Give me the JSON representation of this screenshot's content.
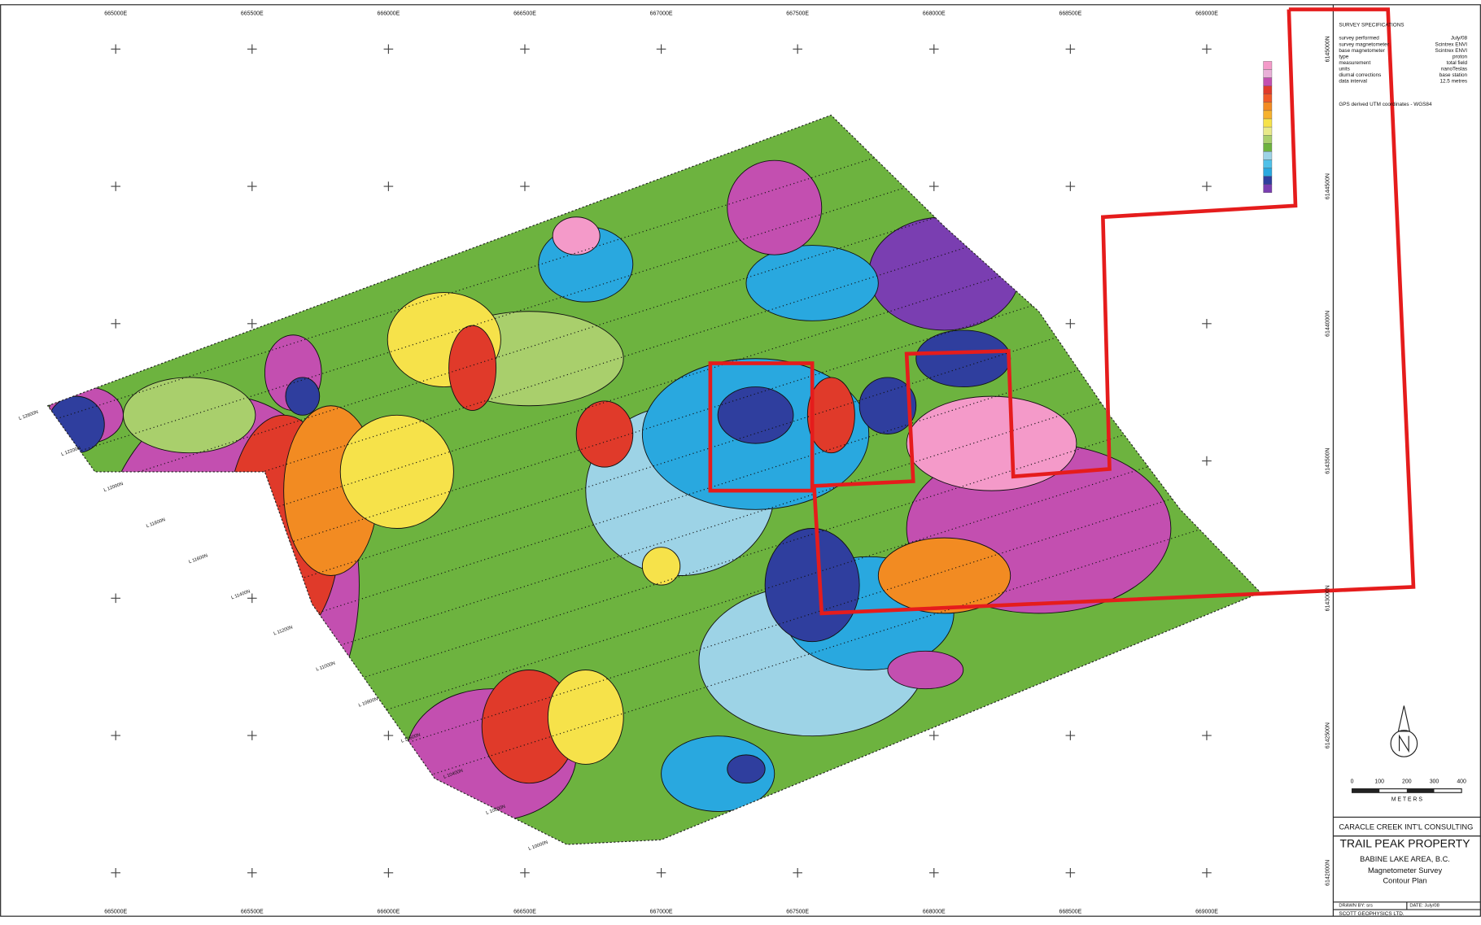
{
  "map": {
    "eastings": [
      "665000E",
      "665500E",
      "666000E",
      "666500E",
      "667000E",
      "667500E",
      "668000E",
      "668500E",
      "669000E"
    ],
    "northings": [
      "6145000N",
      "6144500N",
      "6144000N",
      "6143500N",
      "6143000N",
      "6142500N",
      "6142000N"
    ],
    "line_labels": [
      "L 12600N",
      "L 12200N",
      "L 12000N",
      "L 11800N",
      "L 11600N",
      "L 11400N",
      "L 11200N",
      "L 11000N",
      "L 10800N",
      "L 10600N",
      "L 10400N",
      "L 10200N",
      "L 10000N"
    ]
  },
  "specifications": {
    "title": "SURVEY SPECIFICATIONS",
    "rows": [
      [
        "survey performed",
        "July/08"
      ],
      [
        "survey magnetometer",
        "Scintrex ENVI"
      ],
      [
        "base magnetometer",
        "Scintrex ENVI"
      ],
      [
        "type",
        "proton"
      ],
      [
        "measurement",
        "total field"
      ],
      [
        "units",
        "nanoTeslas"
      ],
      [
        "diurnal corrections",
        "base station"
      ],
      [
        "data interval",
        "12.5 metres"
      ]
    ],
    "note": "GPS derived UTM coordinates - WGS84"
  },
  "scale": {
    "ticks": [
      "0",
      "100",
      "200",
      "300",
      "400"
    ],
    "unit": "M E T E R S"
  },
  "title_block": {
    "company": "CARACLE CREEK INT'L CONSULTING",
    "property": "TRAIL PEAK PROPERTY",
    "area": "BABINE LAKE AREA, B.C.",
    "survey": "Magnetometer Survey",
    "plan": "Contour Plan",
    "drawn": "DRAWN BY: srs",
    "date": "DATE: July/08",
    "contractor": "SCOTT GEOPHYSICS LTD."
  }
}
